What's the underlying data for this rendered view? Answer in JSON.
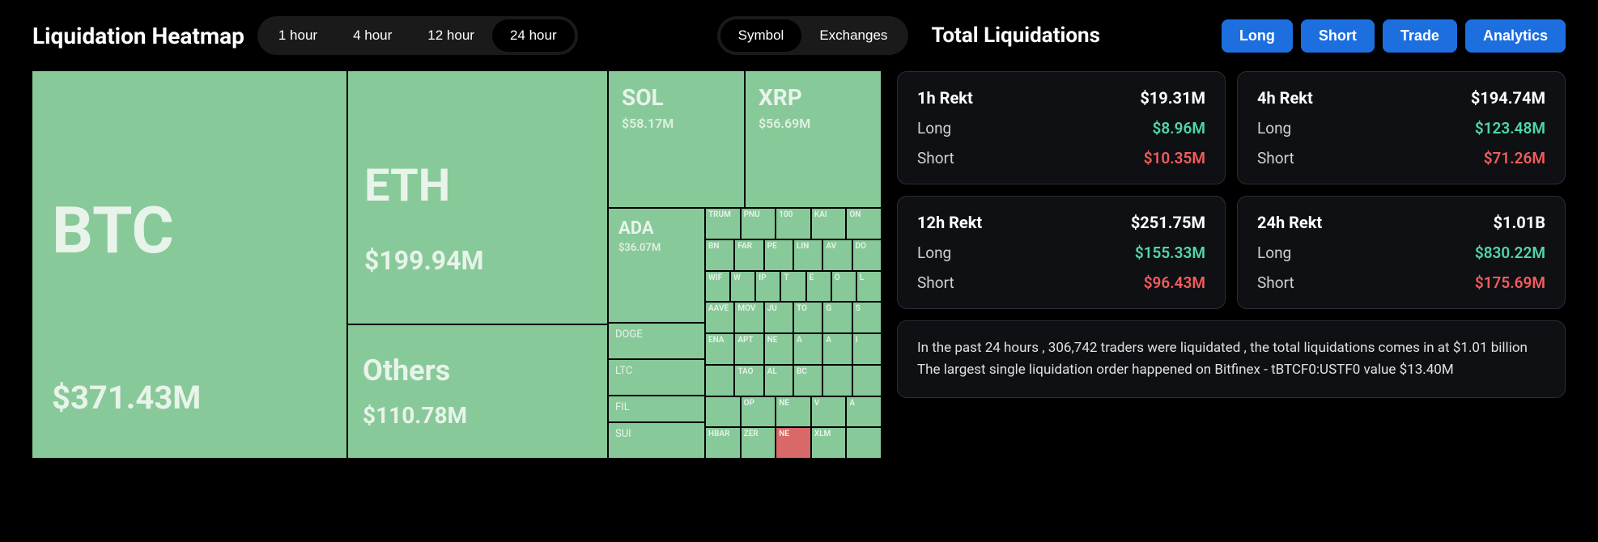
{
  "header": {
    "title_left": "Liquidation Heatmap",
    "title_right": "Total Liquidations",
    "time_tabs": [
      "1 hour",
      "4 hour",
      "12 hour",
      "24 hour"
    ],
    "time_active_index": 3,
    "view_tabs": [
      "Symbol",
      "Exchanges"
    ],
    "view_active_index": 0,
    "nav_buttons": [
      "Long",
      "Short",
      "Trade",
      "Analytics"
    ]
  },
  "heatmap": {
    "type": "treemap",
    "cell_color": "#88c999",
    "cell_color_red": "#d96868",
    "text_color": "#e8f3ea",
    "cells_large": [
      {
        "symbol": "BTC",
        "value": "$371.43M"
      },
      {
        "symbol": "ETH",
        "value": "$199.94M"
      },
      {
        "symbol": "Others",
        "value": "$110.78M"
      },
      {
        "symbol": "SOL",
        "value": "$58.17M"
      },
      {
        "symbol": "XRP",
        "value": "$56.69M"
      },
      {
        "symbol": "ADA",
        "value": "$36.07M"
      },
      {
        "symbol": "DOGE",
        "value": ""
      },
      {
        "symbol": "LTC",
        "value": ""
      },
      {
        "symbol": "SUI",
        "value": ""
      },
      {
        "symbol": "FIL",
        "value": ""
      }
    ],
    "cells_tiny_rows": [
      [
        "TRUM",
        "PNU",
        "100",
        "KAI",
        "ON"
      ],
      [
        "BN",
        "FAR",
        "PE",
        "LIN",
        "AV",
        "DO"
      ],
      [
        "WIF",
        "W",
        "IP",
        "T",
        "E",
        "O",
        "L"
      ],
      [
        "AAVE",
        "MOV",
        "JU",
        "TO",
        "G",
        "S"
      ],
      [
        "ENA",
        "APT",
        "NE",
        "A",
        "A",
        "I"
      ],
      [
        "",
        "TAO",
        "AL",
        "BC",
        "",
        ""
      ],
      [
        "",
        "OP",
        "NE",
        "V",
        "A"
      ],
      [
        "HBAR",
        "ZER",
        "NE",
        "XLM",
        ""
      ]
    ],
    "red_cell_position": {
      "row": 7,
      "col": 2
    }
  },
  "totals": {
    "cards": [
      {
        "title": "1h Rekt",
        "total": "$19.31M",
        "long": "$8.96M",
        "short": "$10.35M"
      },
      {
        "title": "4h Rekt",
        "total": "$194.74M",
        "long": "$123.48M",
        "short": "$71.26M"
      },
      {
        "title": "12h Rekt",
        "total": "$251.75M",
        "long": "$155.33M",
        "short": "$96.43M"
      },
      {
        "title": "24h Rekt",
        "total": "$1.01B",
        "long": "$830.22M",
        "short": "$175.69M"
      }
    ],
    "labels": {
      "long": "Long",
      "short": "Short"
    },
    "summary_line1": "In the past 24 hours , 306,742 traders were liquidated , the total liquidations comes in at $1.01 billion",
    "summary_line2": "The largest single liquidation order happened on Bitfinex - tBTCF0:USTF0 value $13.40M"
  },
  "colors": {
    "long": "#4fd6a8",
    "short": "#f25c5c",
    "card_bg": "#0e1014",
    "card_border": "#2a2d35",
    "blue_btn": "#1d6fe0"
  }
}
